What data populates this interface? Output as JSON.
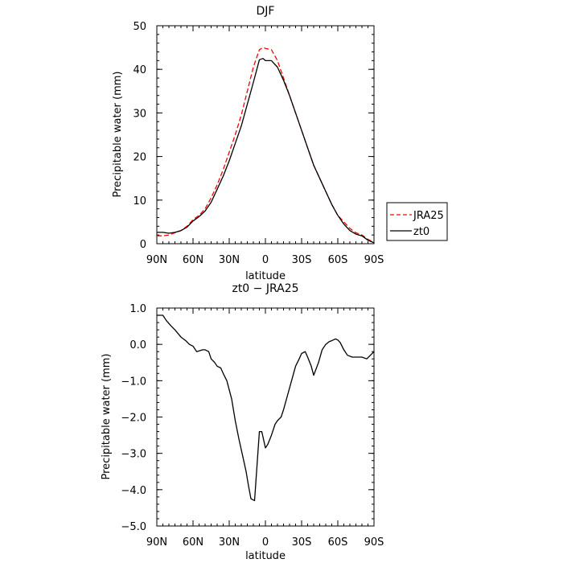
{
  "chart_data": [
    {
      "type": "line",
      "title": "DJF",
      "xlabel": "latitude",
      "ylabel": "Precipitable water (mm)",
      "xlim": [
        90,
        -90
      ],
      "ylim": [
        0,
        50
      ],
      "xticks": [
        {
          "v": 90,
          "label": "90N"
        },
        {
          "v": 60,
          "label": "60N"
        },
        {
          "v": 30,
          "label": "30N"
        },
        {
          "v": 0,
          "label": "0"
        },
        {
          "v": -30,
          "label": "30S"
        },
        {
          "v": -60,
          "label": "60S"
        },
        {
          "v": -90,
          "label": "90S"
        }
      ],
      "yticks": [
        {
          "v": 0,
          "label": "0"
        },
        {
          "v": 10,
          "label": "10"
        },
        {
          "v": 20,
          "label": "20"
        },
        {
          "v": 30,
          "label": "30"
        },
        {
          "v": 40,
          "label": "40"
        },
        {
          "v": 50,
          "label": "50"
        }
      ],
      "legend_position": "right",
      "series": [
        {
          "name": "JRA25",
          "color": "#ff0000",
          "dash": "dashed",
          "x": [
            90,
            85,
            80,
            75,
            70,
            65,
            60,
            55,
            50,
            45,
            40,
            35,
            30,
            25,
            20,
            15,
            10,
            5,
            2,
            0,
            -5,
            -10,
            -15,
            -20,
            -25,
            -30,
            -35,
            -40,
            -45,
            -50,
            -55,
            -60,
            -65,
            -70,
            -75,
            -80,
            -85,
            -90
          ],
          "y": [
            1.8,
            1.8,
            2.0,
            2.5,
            3.0,
            4.0,
            5.5,
            6.5,
            8.0,
            10.5,
            13.5,
            17.0,
            21.0,
            25.0,
            29.5,
            35.0,
            40.5,
            44.5,
            45.0,
            44.8,
            44.5,
            42.0,
            38.0,
            34.0,
            30.0,
            26.0,
            22.0,
            18.0,
            15.0,
            12.0,
            9.0,
            6.5,
            5.0,
            3.5,
            2.5,
            2.0,
            1.0,
            0.3
          ]
        },
        {
          "name": "zt0",
          "color": "#000000",
          "dash": "solid",
          "x": [
            90,
            85,
            80,
            75,
            70,
            65,
            60,
            55,
            50,
            45,
            40,
            35,
            30,
            25,
            20,
            15,
            10,
            5,
            2,
            0,
            -5,
            -10,
            -15,
            -20,
            -25,
            -30,
            -35,
            -40,
            -45,
            -50,
            -55,
            -60,
            -65,
            -70,
            -75,
            -80,
            -85,
            -90
          ],
          "y": [
            2.6,
            2.6,
            2.4,
            2.6,
            3.0,
            3.8,
            5.2,
            6.2,
            7.5,
            9.5,
            12.5,
            15.5,
            19.0,
            23.0,
            27.0,
            32.0,
            37.0,
            42.2,
            42.5,
            42.0,
            42.0,
            40.5,
            37.5,
            34.0,
            30.0,
            26.0,
            22.0,
            18.0,
            15.0,
            12.0,
            9.0,
            6.5,
            4.5,
            3.0,
            2.2,
            1.8,
            0.8,
            0.2
          ]
        }
      ]
    },
    {
      "type": "line",
      "title": "zt0 − JRA25",
      "xlabel": "latitude",
      "ylabel": "Precipitable water (mm)",
      "xlim": [
        90,
        -90
      ],
      "ylim": [
        -5,
        1
      ],
      "xticks": [
        {
          "v": 90,
          "label": "90N"
        },
        {
          "v": 60,
          "label": "60N"
        },
        {
          "v": 30,
          "label": "30N"
        },
        {
          "v": 0,
          "label": "0"
        },
        {
          "v": -30,
          "label": "30S"
        },
        {
          "v": -60,
          "label": "60S"
        },
        {
          "v": -90,
          "label": "90S"
        }
      ],
      "yticks": [
        {
          "v": 1,
          "label": "1.0"
        },
        {
          "v": 0,
          "label": "0.0"
        },
        {
          "v": -1,
          "label": "−1.0"
        },
        {
          "v": -2,
          "label": "−2.0"
        },
        {
          "v": -3,
          "label": "−3.0"
        },
        {
          "v": -4,
          "label": "−4.0"
        },
        {
          "v": -5,
          "label": "−5.0"
        }
      ],
      "series": [
        {
          "color": "#000000",
          "dash": "solid",
          "x": [
            90,
            85,
            82,
            78,
            75,
            70,
            66,
            63,
            60,
            57,
            52,
            50,
            47,
            45,
            42,
            40,
            37,
            35,
            32,
            28,
            25,
            22,
            20,
            16,
            14,
            12,
            9,
            5,
            3,
            1,
            0,
            -2,
            -5,
            -8,
            -10,
            -13,
            -15,
            -20,
            -25,
            -28,
            -30,
            -33,
            -35,
            -38,
            -40,
            -44,
            -47,
            -50,
            -53,
            -55,
            -58,
            -60,
            -62,
            -65,
            -68,
            -72,
            -75,
            -80,
            -84,
            -87,
            -90
          ],
          "y": [
            0.8,
            0.8,
            0.65,
            0.5,
            0.4,
            0.2,
            0.1,
            0.0,
            -0.05,
            -0.2,
            -0.15,
            -0.15,
            -0.2,
            -0.4,
            -0.5,
            -0.6,
            -0.65,
            -0.8,
            -1.0,
            -1.5,
            -2.1,
            -2.6,
            -2.9,
            -3.5,
            -3.9,
            -4.25,
            -4.3,
            -2.4,
            -2.4,
            -2.7,
            -2.85,
            -2.75,
            -2.5,
            -2.2,
            -2.1,
            -2.0,
            -1.8,
            -1.2,
            -0.6,
            -0.4,
            -0.25,
            -0.2,
            -0.35,
            -0.6,
            -0.85,
            -0.5,
            -0.15,
            0.0,
            0.08,
            0.1,
            0.15,
            0.12,
            0.05,
            -0.15,
            -0.3,
            -0.35,
            -0.35,
            -0.35,
            -0.4,
            -0.3,
            -0.2
          ]
        }
      ]
    }
  ]
}
